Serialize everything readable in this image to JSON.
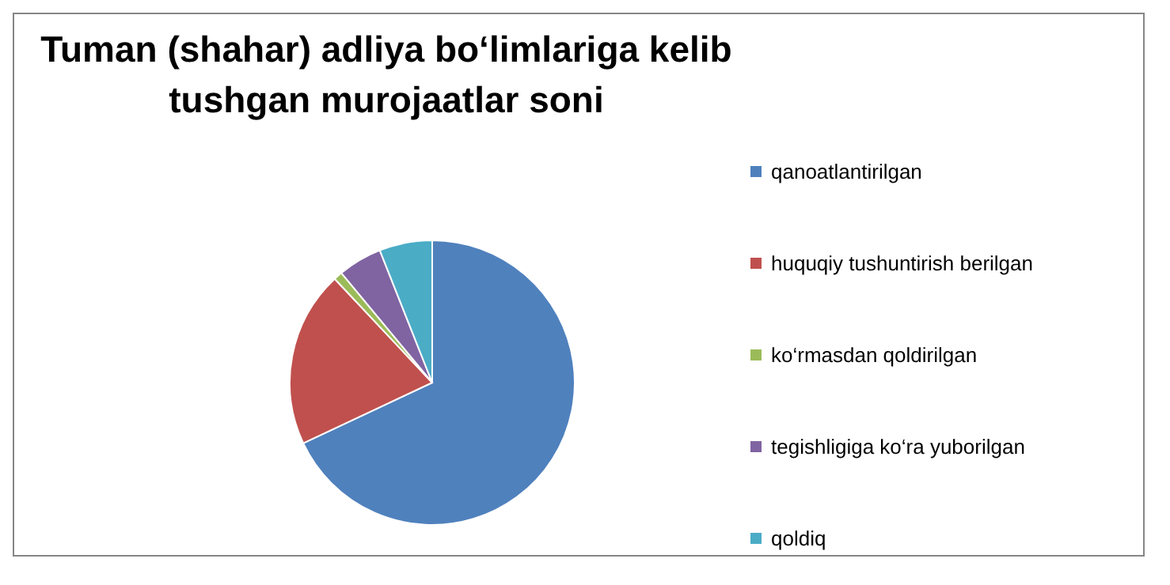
{
  "chart_data": {
    "type": "pie",
    "title": "Tuman (shahar) adliya bo‘limlariga kelib tushgan murojaatlar soni",
    "categories": [
      "qanoatlantirilgan",
      "huquqiy tushuntirish berilgan",
      "ko‘rmasdan qoldirilgan",
      "tegishligiga ko‘ra yuborilgan",
      "qoldiq"
    ],
    "values": [
      68,
      20,
      1,
      5,
      6
    ],
    "colors": [
      "#4f81bd",
      "#c0504d",
      "#9bbb59",
      "#8064a2",
      "#4bacc6"
    ],
    "legend": "right"
  }
}
